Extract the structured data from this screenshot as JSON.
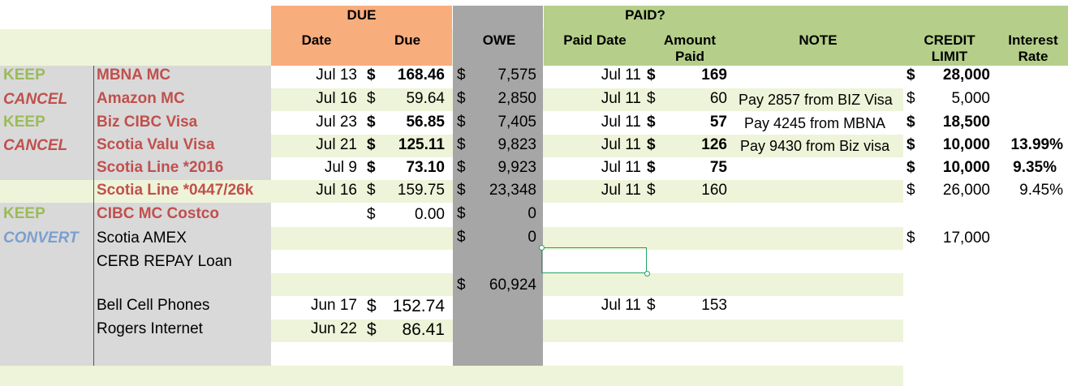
{
  "colors": {
    "due_header": "#f7ad7c",
    "paid_header": "#b5cf8a",
    "owe_column": "#a6a6a6",
    "label_column": "#d9d9d9",
    "band_light": "#eef4d9",
    "selection": "#21a366"
  },
  "headers": {
    "due": "DUE",
    "paid": "PAID?",
    "date": "Date",
    "due_col": "Due",
    "owe": "OWE",
    "paid_date": "Paid Date",
    "amount_paid_1": "Amount",
    "amount_paid_2": "Paid",
    "note": "NOTE",
    "credit_limit_1": "CREDIT",
    "credit_limit_2": "LIMIT",
    "interest_1": "Interest",
    "interest_2": "Rate"
  },
  "rows": [
    {
      "status": "KEEP",
      "account": "MBNA MC",
      "date": "Jul 13",
      "due_cur": "$",
      "due": "168.46",
      "owe_cur": "$",
      "owe": "7,575",
      "paid_date": "Jul 11",
      "paid_cur": "$",
      "amount": "169",
      "note": "",
      "limit_cur": "$",
      "limit": "28,000",
      "rate": ""
    },
    {
      "status": "CANCEL",
      "account": "Amazon MC",
      "date": "Jul 16",
      "due_cur": "$",
      "due": "59.64",
      "owe_cur": "$",
      "owe": "2,850",
      "paid_date": "Jul 11",
      "paid_cur": "$",
      "amount": "60",
      "note": "Pay 2857 from BIZ Visa",
      "limit_cur": "$",
      "limit": "5,000",
      "rate": ""
    },
    {
      "status": "KEEP",
      "account": "Biz CIBC Visa",
      "date": "Jul 23",
      "due_cur": "$",
      "due": "56.85",
      "owe_cur": "$",
      "owe": "7,405",
      "paid_date": "Jul 11",
      "paid_cur": "$",
      "amount": "57",
      "note": "Pay 4245 from MBNA",
      "limit_cur": "$",
      "limit": "18,500",
      "rate": ""
    },
    {
      "status": "CANCEL",
      "account": "Scotia Valu Visa",
      "date": "Jul 21",
      "due_cur": "$",
      "due": "125.11",
      "owe_cur": "$",
      "owe": "9,823",
      "paid_date": "Jul 11",
      "paid_cur": "$",
      "amount": "126",
      "note": "Pay 9430 from Biz visa",
      "limit_cur": "$",
      "limit": "10,000",
      "rate": "13.99%"
    },
    {
      "status": "",
      "account": "Scotia Line *2016",
      "date": "Jul 9",
      "due_cur": "$",
      "due": "73.10",
      "owe_cur": "$",
      "owe": "9,923",
      "paid_date": "Jul 11",
      "paid_cur": "$",
      "amount": "75",
      "note": "",
      "limit_cur": "$",
      "limit": "10,000",
      "rate": "9.35%"
    },
    {
      "status": "",
      "account": "Scotia Line *0447/26k",
      "date": "Jul 16",
      "due_cur": "$",
      "due": "159.75",
      "owe_cur": "$",
      "owe": "23,348",
      "paid_date": "Jul 11",
      "paid_cur": "$",
      "amount": "160",
      "note": "",
      "limit_cur": "$",
      "limit": "26,000",
      "rate": "9.45%"
    },
    {
      "status": "KEEP",
      "account": "CIBC MC Costco",
      "date": "",
      "due_cur": "$",
      "due": "0.00",
      "owe_cur": "$",
      "owe": "0",
      "paid_date": "",
      "paid_cur": "",
      "amount": "",
      "note": "",
      "limit_cur": "",
      "limit": "",
      "rate": ""
    },
    {
      "status": "CONVERT",
      "account": "Scotia AMEX",
      "date": "",
      "due_cur": "",
      "due": "",
      "owe_cur": "$",
      "owe": "0",
      "paid_date": "",
      "paid_cur": "",
      "amount": "",
      "note": "",
      "limit_cur": "$",
      "limit": "17,000",
      "rate": ""
    },
    {
      "status": "",
      "account": "CERB REPAY Loan",
      "date": "",
      "due_cur": "",
      "due": "",
      "owe_cur": "",
      "owe": "",
      "paid_date": "",
      "paid_cur": "",
      "amount": "",
      "note": "",
      "limit_cur": "",
      "limit": "",
      "rate": ""
    }
  ],
  "total": {
    "cur": "$",
    "value": "60,924"
  },
  "bills": [
    {
      "account": "Bell Cell Phones",
      "date": "Jun 17",
      "due_cur": "$",
      "due": "152.74",
      "paid_date": "Jul 11",
      "paid_cur": "$",
      "amount": "153"
    },
    {
      "account": "Rogers Internet",
      "date": "Jun 22",
      "due_cur": "$",
      "due": "86.41",
      "paid_date": "",
      "paid_cur": "",
      "amount": ""
    }
  ]
}
